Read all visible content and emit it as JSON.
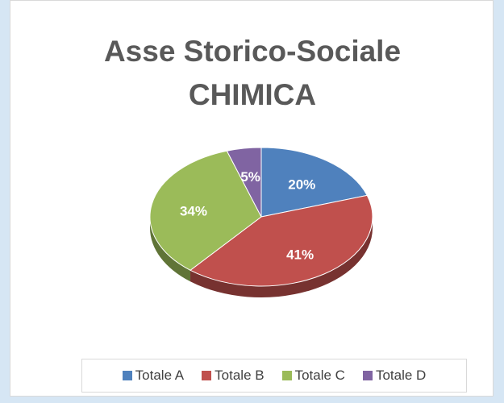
{
  "chart_data": {
    "type": "pie",
    "title": "Asse Storico-Sociale CHIMICA",
    "categories": [
      "Totale A",
      "Totale B",
      "Totale C",
      "Totale D"
    ],
    "values": [
      20,
      41,
      34,
      5
    ],
    "value_labels": [
      "20%",
      "41%",
      "34%",
      "5%"
    ],
    "colors": [
      "#4f81bd",
      "#c0504d",
      "#9bbb59",
      "#8064a2"
    ],
    "legend": "bottom"
  }
}
